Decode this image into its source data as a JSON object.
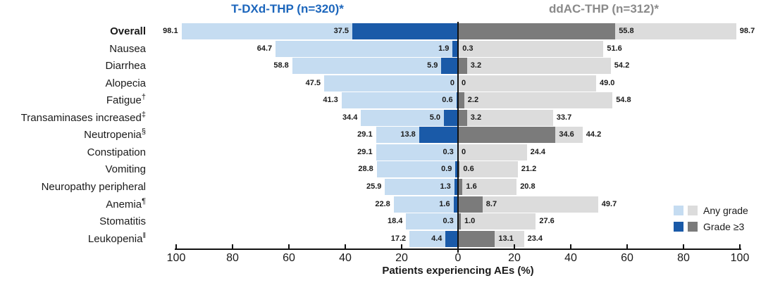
{
  "chart_data": {
    "type": "bar",
    "variant": "horizontal-diverging-butterfly",
    "left_title": "T-DXd-THP (n=320)*",
    "right_title": "ddAC-THP (n=312)*",
    "xlabel": "Patients experiencing AEs (%)",
    "axis_ticks": [
      "100",
      "80",
      "60",
      "40",
      "20",
      "0",
      "20",
      "40",
      "60",
      "80",
      "100"
    ],
    "xlim_each_side": [
      0,
      100
    ],
    "grid": false,
    "legend": {
      "any_grade_label": "Any grade",
      "grade3_label": "Grade ≥3",
      "position": "bottom-right"
    },
    "colors": {
      "left_any": "#C5DCF1",
      "left_g3": "#1A5AA8",
      "right_any": "#DCDCDC",
      "right_g3": "#7B7B7B",
      "left_title": "#1C66BC",
      "right_title": "#8A8A8A",
      "axis": "#111111",
      "text": "#1A1A1A"
    },
    "rows": [
      {
        "label": "Overall",
        "sup": "",
        "bold": true,
        "left_any": "98.1",
        "left_g3": "37.5",
        "right_g3": "55.8",
        "right_any": "98.7"
      },
      {
        "label": "Nausea",
        "sup": "",
        "bold": false,
        "left_any": "64.7",
        "left_g3": "1.9",
        "right_g3": "0.3",
        "right_any": "51.6"
      },
      {
        "label": "Diarrhea",
        "sup": "",
        "bold": false,
        "left_any": "58.8",
        "left_g3": "5.9",
        "right_g3": "3.2",
        "right_any": "54.2"
      },
      {
        "label": "Alopecia",
        "sup": "",
        "bold": false,
        "left_any": "47.5",
        "left_g3": "0",
        "right_g3": "0",
        "right_any": "49.0"
      },
      {
        "label": "Fatigue",
        "sup": "†",
        "bold": false,
        "left_any": "41.3",
        "left_g3": "0.6",
        "right_g3": "2.2",
        "right_any": "54.8"
      },
      {
        "label": "Transaminases increased",
        "sup": "‡",
        "bold": false,
        "left_any": "34.4",
        "left_g3": "5.0",
        "right_g3": "3.2",
        "right_any": "33.7"
      },
      {
        "label": "Neutropenia",
        "sup": "§",
        "bold": false,
        "left_any": "29.1",
        "left_g3": "13.8",
        "right_g3": "34.6",
        "right_any": "44.2"
      },
      {
        "label": "Constipation",
        "sup": "",
        "bold": false,
        "left_any": "29.1",
        "left_g3": "0.3",
        "right_g3": "0",
        "right_any": "24.4"
      },
      {
        "label": "Vomiting",
        "sup": "",
        "bold": false,
        "left_any": "28.8",
        "left_g3": "0.9",
        "right_g3": "0.6",
        "right_any": "21.2"
      },
      {
        "label": "Neuropathy peripheral",
        "sup": "",
        "bold": false,
        "left_any": "25.9",
        "left_g3": "1.3",
        "right_g3": "1.6",
        "right_any": "20.8"
      },
      {
        "label": "Anemia",
        "sup": "¶",
        "bold": false,
        "left_any": "22.8",
        "left_g3": "1.6",
        "right_g3": "8.7",
        "right_any": "49.7"
      },
      {
        "label": "Stomatitis",
        "sup": "",
        "bold": false,
        "left_any": "18.4",
        "left_g3": "0.3",
        "right_g3": "1.0",
        "right_any": "27.6"
      },
      {
        "label": "Leukopenia",
        "sup": "‖",
        "bold": false,
        "left_any": "17.2",
        "left_g3": "4.4",
        "right_g3": "13.1",
        "right_any": "23.4"
      }
    ]
  }
}
